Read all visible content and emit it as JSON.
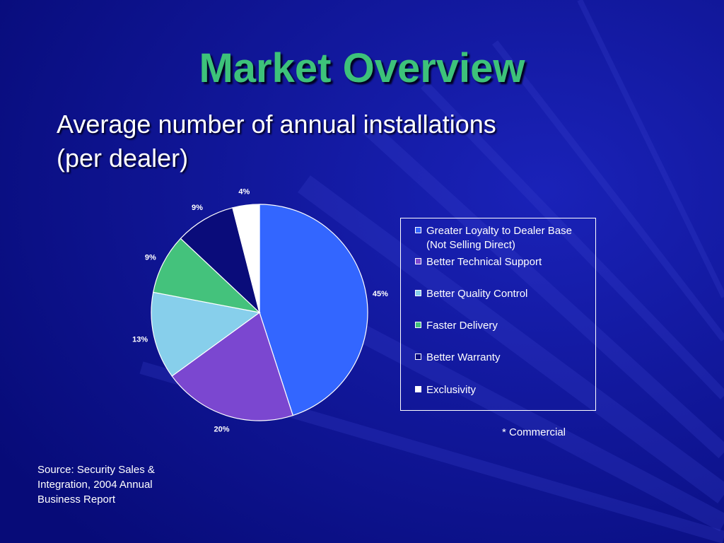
{
  "slide": {
    "title": "Market Overview",
    "subtitle_line1": "Average number of annual installations",
    "subtitle_line2": "(per dealer)",
    "note": "* Commercial",
    "source_line1": "Source: Security Sales &",
    "source_line2": "Integration, 2004 Annual",
    "source_line3": "Business Report"
  },
  "colors": {
    "background": "#0b0f8a",
    "title": "#3dc27a",
    "text": "#ffffff"
  },
  "chart_data": {
    "type": "pie",
    "title": "",
    "legend_position": "right",
    "slices": [
      {
        "label": "Greater Loyalty to Dealer Base (Not Selling Direct)",
        "label_line1": "Greater Loyalty to Dealer Base",
        "label_line2": "(Not Selling Direct)",
        "value": 45,
        "value_label": "45%",
        "color": "#3366ff"
      },
      {
        "label": "Better Technical Support",
        "label_line1": "Better Technical Support",
        "label_line2": "",
        "value": 20,
        "value_label": "20%",
        "color": "#7b47d0"
      },
      {
        "label": "Better Quality Control",
        "label_line1": "Better Quality Control",
        "label_line2": "",
        "value": 13,
        "value_label": "13%",
        "color": "#87cfeb"
      },
      {
        "label": "Faster Delivery",
        "label_line1": "Faster Delivery",
        "label_line2": "",
        "value": 9,
        "value_label": "9%",
        "color": "#44c27c"
      },
      {
        "label": "Better Warranty",
        "label_line1": "Better Warranty",
        "label_line2": "",
        "value": 9,
        "value_label": "9%",
        "color": "#0a0c7a"
      },
      {
        "label": "Exclusivity",
        "label_line1": "Exclusivity",
        "label_line2": "",
        "value": 4,
        "value_label": "4%",
        "color": "#ffffff"
      }
    ]
  }
}
